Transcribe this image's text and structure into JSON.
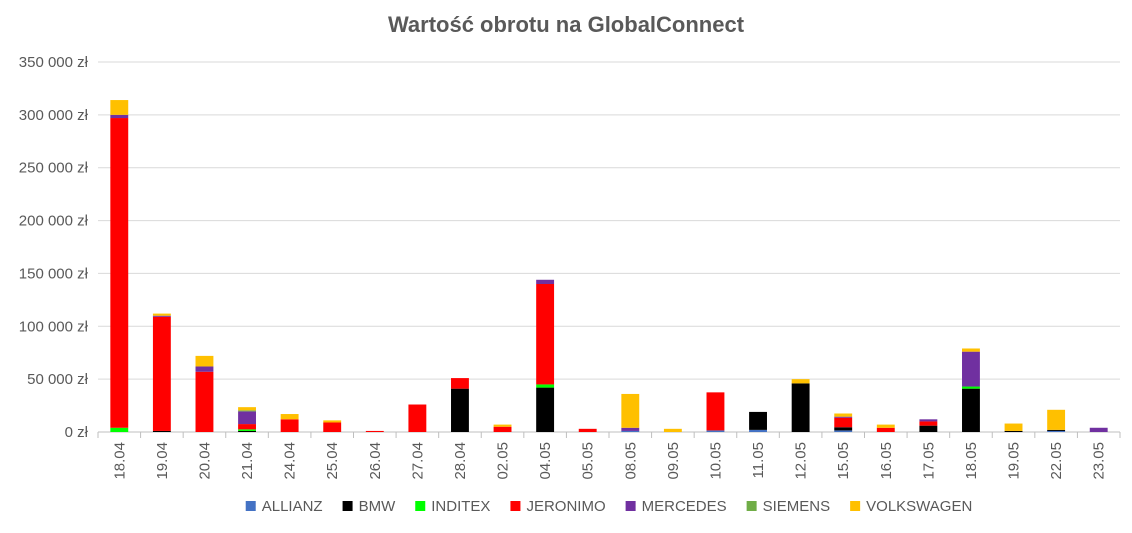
{
  "chart_data": {
    "type": "bar",
    "stacked": true,
    "title": "Wartość obrotu na GlobalConnect",
    "xlabel": "",
    "ylabel": "",
    "ylim": [
      0,
      350000
    ],
    "yticks": [
      0,
      50000,
      100000,
      150000,
      200000,
      250000,
      300000,
      350000
    ],
    "ytick_labels": [
      "0 zł",
      "50 000 zł",
      "100 000 zł",
      "150 000 zł",
      "200 000 zł",
      "250 000 zł",
      "300 000 zł",
      "350 000 zł"
    ],
    "grid": true,
    "legend_position": "bottom",
    "categories": [
      "18.04",
      "19.04",
      "20.04",
      "21.04",
      "24.04",
      "25.04",
      "26.04",
      "27.04",
      "28.04",
      "02.05",
      "04.05",
      "05.05",
      "08.05",
      "09.05",
      "10.05",
      "11.05",
      "12.05",
      "15.05",
      "16.05",
      "17.05",
      "18.05",
      "19.05",
      "22.05",
      "23.05"
    ],
    "series": [
      {
        "name": "ALLIANZ",
        "color": "#4472C4",
        "values": [
          0,
          0,
          0,
          0,
          0,
          0,
          0,
          0,
          0,
          0,
          0,
          0,
          1000,
          0,
          1500,
          2000,
          0,
          1500,
          0,
          0,
          0,
          0,
          1000,
          0
        ]
      },
      {
        "name": "BMW",
        "color": "#000000",
        "values": [
          0,
          1000,
          0,
          1000,
          0,
          0,
          0,
          0,
          41000,
          0,
          42000,
          0,
          0,
          0,
          0,
          17000,
          46000,
          3000,
          0,
          6000,
          41000,
          1000,
          1000,
          0
        ]
      },
      {
        "name": "INDITEX",
        "color": "#00FF00",
        "values": [
          4000,
          0,
          0,
          1500,
          0,
          0,
          0,
          0,
          0,
          0,
          3000,
          0,
          0,
          0,
          0,
          0,
          0,
          0,
          0,
          0,
          2000,
          0,
          0,
          0
        ]
      },
      {
        "name": "JERONIMO",
        "color": "#FF0000",
        "values": [
          293000,
          108000,
          57000,
          5000,
          12000,
          9000,
          1000,
          26000,
          10000,
          5000,
          95000,
          3000,
          0,
          0,
          36000,
          0,
          0,
          9000,
          4000,
          4000,
          0,
          0,
          0,
          0
        ]
      },
      {
        "name": "MERCEDES",
        "color": "#7030A0",
        "values": [
          3000,
          1000,
          5000,
          12000,
          0,
          0,
          0,
          0,
          0,
          0,
          4000,
          0,
          3000,
          0,
          0,
          0,
          0,
          1000,
          0,
          2000,
          33000,
          0,
          0,
          4000
        ]
      },
      {
        "name": "SIEMENS",
        "color": "#70AD47",
        "values": [
          0,
          0,
          0,
          1000,
          0,
          0,
          0,
          0,
          0,
          0,
          0,
          0,
          0,
          0,
          0,
          0,
          0,
          0,
          0,
          0,
          0,
          0,
          0,
          0
        ]
      },
      {
        "name": "VOLKSWAGEN",
        "color": "#FFC000",
        "values": [
          14000,
          2000,
          10000,
          3000,
          5000,
          2000,
          0,
          0,
          0,
          2000,
          0,
          0,
          32000,
          3000,
          0,
          0,
          4000,
          3000,
          3000,
          0,
          3000,
          7000,
          19000,
          0
        ]
      }
    ]
  }
}
